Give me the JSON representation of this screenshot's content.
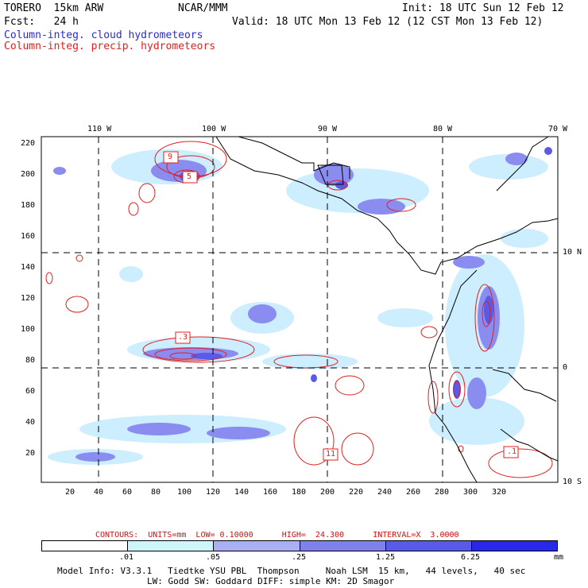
{
  "header": {
    "model": "TORERO  15km ARW",
    "org": "NCAR/MMM",
    "init": "Init: 18 UTC Sun 12 Feb 12",
    "fcst": "Fcst:   24 h",
    "valid": "Valid: 18 UTC Mon 13 Feb 12 (12 CST Mon 13 Feb 12)",
    "field1": "Column-integ. cloud hydrometeors",
    "field2": "Column-integ. precip. hydrometeors"
  },
  "colors": {
    "cloud_fill": "#7a7ae8",
    "cloud_light": "#cceeff",
    "precip_contour": "#e02020",
    "coast": "#000000"
  },
  "axes": {
    "top_lon": [
      "110 W",
      "100 W",
      "90 W",
      "80 W",
      "70 W"
    ],
    "right_lat": [
      "10 N",
      "0",
      "10 S"
    ],
    "y_ticks": [
      "220",
      "200",
      "180",
      "160",
      "140",
      "120",
      "100",
      "80",
      "60",
      "40",
      "20"
    ],
    "x_ticks": [
      "20",
      "40",
      "60",
      "80",
      "100",
      "120",
      "140",
      "160",
      "180",
      "200",
      "220",
      "240",
      "260",
      "280",
      "300",
      "320"
    ]
  },
  "labels": {
    "l9": "9",
    "l5": "5",
    "l3": ".3",
    "l11": "11",
    "lr": ".1"
  },
  "contours_text": "CONTOURS:  UNITS=mm  LOW= 0.10000      HIGH=  24.300      INTERVAL=X  3.0000",
  "colorbar": {
    "colors": [
      "#ffffff",
      "#ccf6f9",
      "#a9aff2",
      "#7f82ec",
      "#5a5ae8",
      "#2828e8"
    ],
    "labels": [
      ".01",
      ".05",
      ".25",
      "1.25",
      "6.25"
    ],
    "unit": "mm"
  },
  "footer": {
    "line1": "Model Info: V3.3.1   Tiedtke YSU PBL  Thompson     Noah LSM  15 km,   44 levels,   40 sec",
    "line2": "LW: Godd SW: Goddard DIFF: simple KM: 2D Smagor"
  }
}
